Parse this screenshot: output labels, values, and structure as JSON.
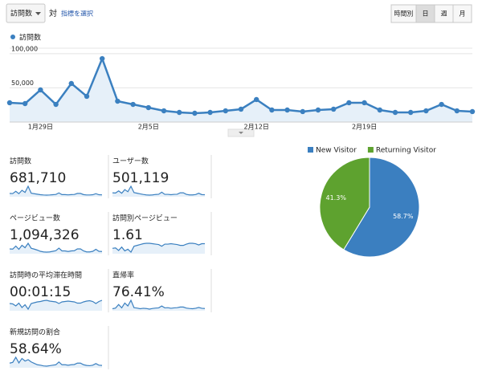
{
  "header": {
    "metric_button": "訪問数",
    "vs": "対",
    "select_metric": "指標を選択",
    "period_buttons": [
      "時間別",
      "日",
      "週",
      "月"
    ],
    "active_period": 1
  },
  "chart_data": [
    {
      "type": "line",
      "series": [
        {
          "name": "訪問数",
          "color": "#3b80c0",
          "values": [
            28200,
            27000,
            47000,
            25800,
            56400,
            37600,
            92700,
            30500,
            25800,
            21100,
            16400,
            14100,
            12900,
            14100,
            16400,
            18800,
            32900,
            17600,
            17600,
            15300,
            17600,
            18800,
            28200,
            28200,
            17600,
            14100,
            14100,
            16400,
            25800,
            16400,
            15300
          ]
        }
      ],
      "categories": [
        null,
        null,
        "1月29日",
        null,
        null,
        null,
        null,
        null,
        null,
        "2月5日",
        null,
        null,
        null,
        null,
        null,
        null,
        "2月12日",
        null,
        null,
        null,
        null,
        null,
        null,
        "2月19日",
        null,
        null,
        null,
        null,
        null,
        null,
        null
      ],
      "ylim": [
        0,
        108000
      ],
      "yticks": [
        {
          "value": 50000,
          "label": "50,000"
        },
        {
          "value": 100000,
          "label": "100,000"
        }
      ],
      "grid": true
    },
    {
      "type": "pie",
      "categories": [
        "New Visitor",
        "Returning Visitor"
      ],
      "values": [
        58.7,
        41.3
      ],
      "value_labels": [
        "58.7%",
        "41.3%"
      ],
      "colors": [
        "#3b7fc0",
        "#5ea22f"
      ],
      "legend": "top"
    }
  ],
  "metrics": [
    {
      "label": "訪問数",
      "value": "681,710",
      "sparkline": [
        28200,
        27000,
        47000,
        25800,
        56400,
        37600,
        92700,
        30500,
        25800,
        21100,
        16400,
        14100,
        12900,
        14100,
        16400,
        18800,
        32900,
        17600,
        17600,
        15300,
        17600,
        18800,
        28200,
        28200,
        17600,
        14100,
        14100,
        16400,
        25800,
        16400,
        15300
      ]
    },
    {
      "label": "ユーザー数",
      "value": "501,119",
      "sparkline": [
        21000,
        20000,
        30000,
        19000,
        36000,
        26000,
        52000,
        22000,
        19000,
        16000,
        13000,
        11000,
        10000,
        11000,
        13000,
        14000,
        24000,
        13500,
        13500,
        12000,
        13500,
        14000,
        21000,
        21000,
        13500,
        11000,
        11000,
        12500,
        19000,
        12500,
        12000
      ]
    },
    {
      "label": "ページビュー数",
      "value": "1,094,326",
      "sparkline": [
        42000,
        41000,
        56000,
        40000,
        60000,
        48000,
        70000,
        45000,
        41000,
        36000,
        30000,
        27000,
        26000,
        27000,
        30000,
        33000,
        46000,
        32000,
        32000,
        29000,
        32000,
        33000,
        42000,
        42000,
        32000,
        27000,
        27000,
        30000,
        40000,
        30000,
        29000
      ]
    },
    {
      "label": "訪問別ページビュー",
      "value": "1.61",
      "sparkline": [
        1.55,
        1.56,
        1.5,
        1.58,
        1.49,
        1.53,
        1.46,
        1.6,
        1.62,
        1.64,
        1.66,
        1.67,
        1.67,
        1.66,
        1.65,
        1.64,
        1.6,
        1.65,
        1.65,
        1.66,
        1.65,
        1.64,
        1.62,
        1.62,
        1.65,
        1.67,
        1.67,
        1.66,
        1.63,
        1.66,
        1.66
      ]
    },
    {
      "label": "訪問時の平均滞在時間",
      "value": "00:01:15",
      "sparkline": [
        72,
        71,
        66,
        73,
        62,
        69,
        58,
        72,
        74,
        76,
        77,
        79,
        80,
        78,
        77,
        76,
        72,
        76,
        77,
        78,
        77,
        76,
        73,
        73,
        76,
        78,
        79,
        77,
        72,
        77,
        80
      ]
    },
    {
      "label": "直帰率",
      "value": "76.41%",
      "sparkline": [
        75.5,
        75.8,
        77.5,
        75.9,
        78.2,
        76.8,
        79.5,
        76,
        75.8,
        75.5,
        75.7,
        75.6,
        75.3,
        75.6,
        75.8,
        75.9,
        76.8,
        75.9,
        76,
        75.7,
        75.9,
        76,
        76.3,
        76.3,
        75.8,
        75.6,
        75.5,
        75.7,
        76.1,
        75.7,
        75.6
      ]
    },
    {
      "label": "新規訪問の割合",
      "value": "58.64%",
      "sparkline": [
        58.5,
        58.8,
        61,
        58.6,
        60.5,
        59.4,
        60,
        59,
        58.4,
        57.8,
        57.6,
        57.3,
        57.2,
        57.4,
        57.6,
        57.8,
        59,
        57.8,
        57.8,
        57.6,
        57.8,
        57.9,
        58.5,
        58.5,
        57.8,
        57.5,
        57.4,
        57.6,
        58.3,
        57.6,
        57.5
      ]
    }
  ]
}
